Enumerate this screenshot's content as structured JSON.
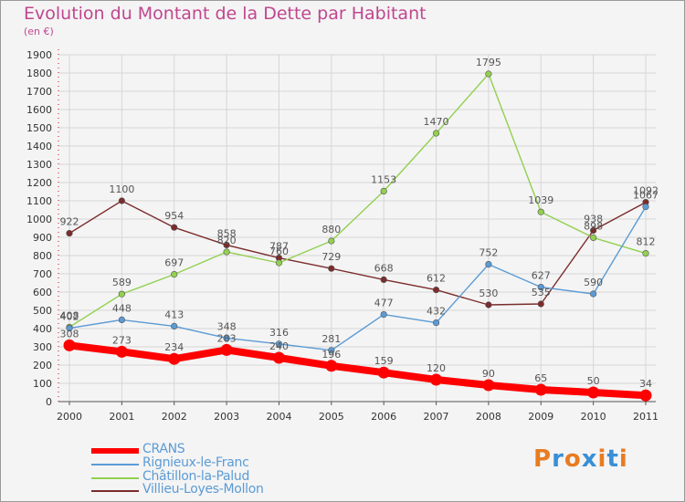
{
  "title": "Evolution du Montant de la Dette par Habitant",
  "subtitle": "(en €)",
  "logo": {
    "text": "Proxiti",
    "letters": [
      "P",
      "r",
      "o",
      "x",
      "i",
      "t",
      "i"
    ],
    "colors": [
      "#e87c22",
      "#3a8fd6",
      "#e87c22",
      "#3a8fd6",
      "#e87c22",
      "#3a8fd6",
      "#e87c22"
    ]
  },
  "chart_data": {
    "type": "line",
    "title": "Evolution du Montant de la Dette par Habitant",
    "ylabel": "(en €)",
    "xlabel": "",
    "ylim": [
      0,
      1900
    ],
    "yticks": [
      0,
      100,
      200,
      300,
      400,
      500,
      600,
      700,
      800,
      900,
      1000,
      1100,
      1200,
      1300,
      1400,
      1500,
      1600,
      1700,
      1800,
      1900
    ],
    "categories": [
      "2000",
      "2001",
      "2002",
      "2003",
      "2004",
      "2005",
      "2006",
      "2007",
      "2008",
      "2009",
      "2010",
      "2011"
    ],
    "grid": true,
    "legend": "bottom-left",
    "series": [
      {
        "name": "CRANS",
        "color": "#ff0000",
        "values": [
          308,
          273,
          234,
          283,
          240,
          196,
          159,
          120,
          90,
          65,
          50,
          34
        ],
        "labels": [
          "308",
          "273",
          "234",
          "283",
          "240",
          "196",
          "159",
          "120",
          "90",
          "65",
          "50",
          "34"
        ]
      },
      {
        "name": "Rignieux-le-Franc",
        "color": "#5b9bd5",
        "values": [
          402,
          448,
          413,
          348,
          316,
          281,
          477,
          432,
          752,
          627,
          590,
          1067
        ],
        "labels": [
          "402",
          "448",
          "413",
          "348",
          "316",
          "281",
          "477",
          "432",
          "752",
          "627",
          "590",
          "1067"
        ]
      },
      {
        "name": "Châtillon-la-Palud",
        "color": "#92d050",
        "values": [
          408,
          589,
          697,
          820,
          760,
          880,
          1153,
          1470,
          1795,
          1039,
          898,
          812
        ],
        "labels": [
          "408",
          "589",
          "697",
          "820",
          "760",
          "880",
          "1153",
          "1470",
          "1795",
          "1039",
          "898",
          "812"
        ]
      },
      {
        "name": "Villieu-Loyes-Mollon",
        "color": "#7b2c2c",
        "values": [
          922,
          1100,
          954,
          858,
          787,
          729,
          668,
          612,
          530,
          535,
          938,
          1092
        ],
        "labels": [
          "922",
          "1100",
          "954",
          "858",
          "787",
          "729",
          "668",
          "612",
          "530",
          "535",
          "938",
          "1092"
        ]
      }
    ]
  }
}
